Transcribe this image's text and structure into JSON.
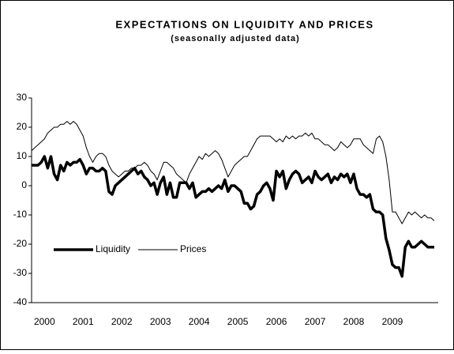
{
  "chart_data": {
    "type": "line",
    "title": "EXPECTATIONS ON LIQUIDITY AND PRICES",
    "subtitle": "(seasonally adjusted data)",
    "categories": [
      null,
      null,
      null,
      null,
      "2000",
      null,
      null,
      null,
      null,
      null,
      null,
      null,
      null,
      null,
      null,
      null,
      "2001",
      null,
      null,
      null,
      null,
      null,
      null,
      null,
      null,
      null,
      null,
      null,
      "2002",
      null,
      null,
      null,
      null,
      null,
      null,
      null,
      null,
      null,
      null,
      null,
      "2003",
      null,
      null,
      null,
      null,
      null,
      null,
      null,
      null,
      null,
      null,
      null,
      "2004",
      null,
      null,
      null,
      null,
      null,
      null,
      null,
      null,
      null,
      null,
      null,
      "2005",
      null,
      null,
      null,
      null,
      null,
      null,
      null,
      null,
      null,
      null,
      null,
      "2006",
      null,
      null,
      null,
      null,
      null,
      null,
      null,
      null,
      null,
      null,
      null,
      "2007",
      null,
      null,
      null,
      null,
      null,
      null,
      null,
      null,
      null,
      null,
      null,
      "2008",
      null,
      null,
      null,
      null,
      null,
      null,
      null,
      null,
      null,
      null,
      null,
      "2009",
      null,
      null,
      null,
      null,
      null,
      null,
      null,
      null,
      null,
      null,
      null,
      null,
      null
    ],
    "series": [
      {
        "name": "Liquidity",
        "color": "#000000",
        "width": 3.5,
        "values": [
          7,
          7,
          7,
          8,
          10,
          6,
          10,
          4,
          2,
          7,
          5,
          8,
          7,
          8,
          8,
          9,
          7,
          4,
          6,
          6,
          5,
          5,
          6,
          5,
          -2,
          -3,
          0,
          1,
          2,
          3,
          4,
          5,
          6,
          4,
          5,
          3,
          2,
          0,
          1,
          -3,
          1,
          3,
          -3,
          1,
          -4,
          -4,
          1,
          1,
          1,
          -1,
          1,
          -4,
          -3,
          -2,
          -2,
          -1,
          -2,
          -1,
          0,
          -1,
          2,
          -2,
          0,
          0,
          -1,
          -2,
          -6,
          -6,
          -8,
          -7,
          -3,
          -2,
          0,
          1,
          -1,
          -5,
          5,
          3,
          5,
          -1,
          2,
          4,
          5,
          4,
          1,
          2,
          3,
          1,
          5,
          3,
          2,
          3,
          4,
          1,
          3,
          2,
          4,
          3,
          4,
          1,
          4,
          -1,
          -3,
          -3,
          -4,
          -3,
          -8,
          -9,
          -9,
          -10,
          -18,
          -22,
          -27,
          -28,
          -28,
          -31,
          -21,
          -19,
          -21,
          -21,
          -20,
          -19,
          -20,
          -21,
          -21,
          -21
        ]
      },
      {
        "name": "Prices",
        "color": "#000000",
        "width": 1,
        "values": [
          12,
          13,
          14,
          15,
          16,
          18,
          19,
          20,
          20,
          21,
          21,
          22,
          21,
          22,
          21,
          19,
          17,
          13,
          10,
          8,
          10,
          11,
          11,
          10,
          7,
          5,
          4,
          3,
          4,
          5,
          5,
          6,
          6,
          7,
          7,
          8,
          7,
          5,
          4,
          2,
          5,
          8,
          8,
          7,
          6,
          4,
          3,
          2,
          1,
          4,
          6,
          8,
          10,
          9,
          11,
          10,
          11,
          12,
          11,
          9,
          6,
          3,
          5,
          7,
          8,
          9,
          10,
          10,
          12,
          14,
          16,
          17,
          17,
          17,
          17,
          16,
          15,
          16,
          15,
          17,
          16,
          17,
          16,
          17,
          17,
          18,
          17,
          18,
          16,
          16,
          15,
          14,
          14,
          13,
          12,
          13,
          15,
          14,
          13,
          14,
          16,
          16,
          16,
          14,
          13,
          12,
          11,
          16,
          17,
          15,
          10,
          2,
          -9,
          -9,
          -11,
          -13,
          -11,
          -9,
          -10,
          -9,
          -10,
          -11,
          -10,
          -11,
          -11,
          -12
        ]
      }
    ],
    "ylim": [
      -40,
      30
    ],
    "yticks": [
      -40,
      -30,
      -20,
      -10,
      0,
      10,
      20,
      30
    ],
    "grid": false,
    "legend": "left"
  }
}
